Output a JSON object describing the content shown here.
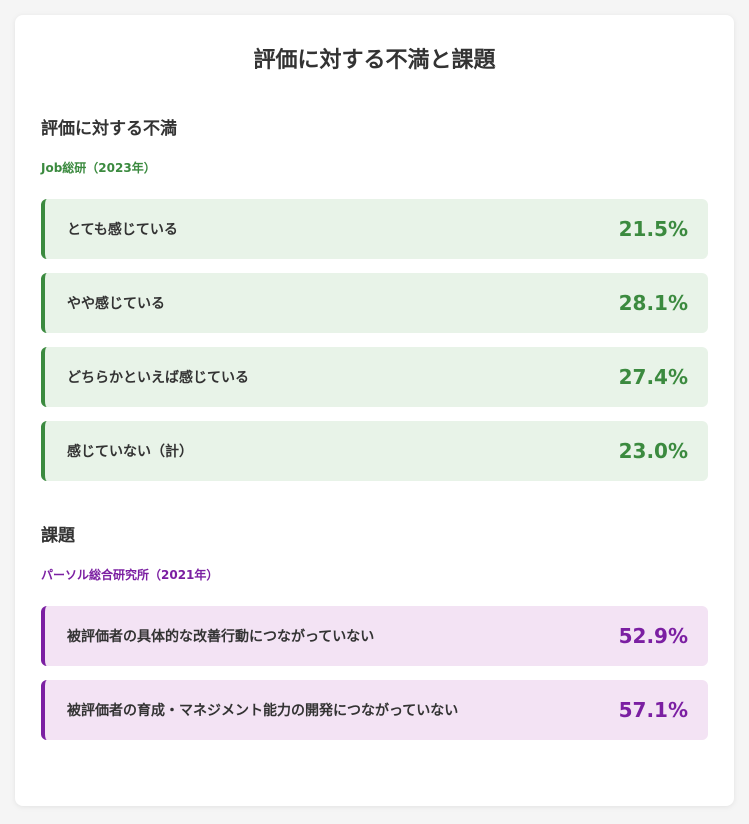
{
  "page": {
    "title": "評価に対する不満と課題"
  },
  "sections": [
    {
      "title": "評価に対する不満",
      "source": "Job総研（2023年）",
      "accent": "#3b8a3f",
      "background": "#e8f3e8",
      "items": [
        {
          "label": "とても感じている",
          "value": "21.5%"
        },
        {
          "label": "やや感じている",
          "value": "28.1%"
        },
        {
          "label": "どちらかといえば感じている",
          "value": "27.4%"
        },
        {
          "label": "感じていない（計）",
          "value": "23.0%"
        }
      ]
    },
    {
      "title": "課題",
      "source": "パーソル総合研究所（2021年）",
      "accent": "#7b1fa2",
      "background": "#f3e3f4",
      "items": [
        {
          "label": "被評価者の具体的な改善行動につながっていない",
          "value": "52.9%"
        },
        {
          "label": "被評価者の育成・マネジメント能力の開発につながっていない",
          "value": "57.1%"
        }
      ]
    }
  ]
}
